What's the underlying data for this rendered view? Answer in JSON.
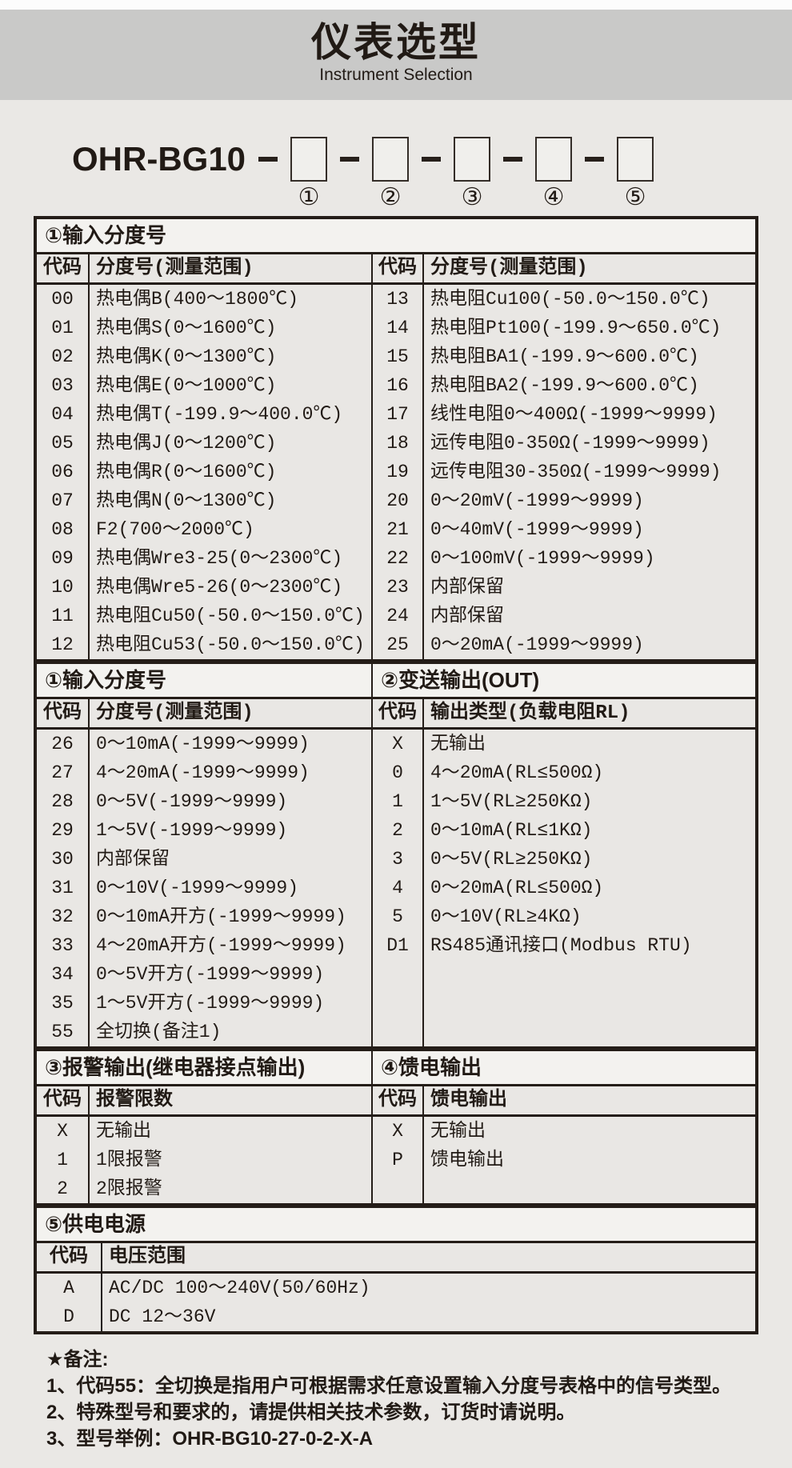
{
  "page": {
    "banner": {
      "title": "仪表选型",
      "subtitle": "Instrument Selection"
    },
    "model": {
      "prefix": "OHR-BG10",
      "slots": [
        "①",
        "②",
        "③",
        "④",
        "⑤"
      ]
    },
    "colors": {
      "page_bg": "#eae8e5",
      "banner_bg": "#c9c9c8",
      "section_header_bg": "#f3f2ef",
      "table_border": "#241d18",
      "text": "#211a15",
      "box_fill": "#f0efec"
    },
    "sections": [
      {
        "titles": [
          "①输入分度号"
        ],
        "col_headers": [
          "代码",
          "分度号(测量范围)",
          "代码",
          "分度号(测量范围)"
        ],
        "halves": [
          [
            [
              "00",
              "热电偶B(400～1800℃)"
            ],
            [
              "01",
              "热电偶S(0～1600℃)"
            ],
            [
              "02",
              "热电偶K(0～1300℃)"
            ],
            [
              "03",
              "热电偶E(0～1000℃)"
            ],
            [
              "04",
              "热电偶T(-199.9～400.0℃)"
            ],
            [
              "05",
              "热电偶J(0～1200℃)"
            ],
            [
              "06",
              "热电偶R(0～1600℃)"
            ],
            [
              "07",
              "热电偶N(0～1300℃)"
            ],
            [
              "08",
              "F2(700～2000℃)"
            ],
            [
              "09",
              "热电偶Wre3-25(0～2300℃)"
            ],
            [
              "10",
              "热电偶Wre5-26(0～2300℃)"
            ],
            [
              "11",
              "热电阻Cu50(-50.0～150.0℃)"
            ],
            [
              "12",
              "热电阻Cu53(-50.0～150.0℃)"
            ]
          ],
          [
            [
              "13",
              "热电阻Cu100(-50.0～150.0℃)"
            ],
            [
              "14",
              "热电阻Pt100(-199.9～650.0℃)"
            ],
            [
              "15",
              "热电阻BA1(-199.9～600.0℃)"
            ],
            [
              "16",
              "热电阻BA2(-199.9～600.0℃)"
            ],
            [
              "17",
              "线性电阻0～400Ω(-1999～9999)"
            ],
            [
              "18",
              "远传电阻0-350Ω(-1999～9999)"
            ],
            [
              "19",
              "远传电阻30-350Ω(-1999～9999)"
            ],
            [
              "20",
              "0～20mV(-1999～9999)"
            ],
            [
              "21",
              "0～40mV(-1999～9999)"
            ],
            [
              "22",
              "0～100mV(-1999～9999)"
            ],
            [
              "23",
              "内部保留"
            ],
            [
              "24",
              "内部保留"
            ],
            [
              "25",
              "0～20mA(-1999～9999)"
            ]
          ]
        ]
      },
      {
        "titles": [
          "①输入分度号",
          "②变送输出(OUT)"
        ],
        "col_headers": [
          "代码",
          "分度号(测量范围)",
          "代码",
          "输出类型(负载电阻RL)"
        ],
        "halves": [
          [
            [
              "26",
              "0～10mA(-1999～9999)"
            ],
            [
              "27",
              "4～20mA(-1999～9999)"
            ],
            [
              "28",
              "0～5V(-1999～9999)"
            ],
            [
              "29",
              "1～5V(-1999～9999)"
            ],
            [
              "30",
              "内部保留"
            ],
            [
              "31",
              "0～10V(-1999～9999)"
            ],
            [
              "32",
              "0～10mA开方(-1999～9999)"
            ],
            [
              "33",
              "4～20mA开方(-1999～9999)"
            ],
            [
              "34",
              "0～5V开方(-1999～9999)"
            ],
            [
              "35",
              "1～5V开方(-1999～9999)"
            ],
            [
              "55",
              "全切换(备注1)"
            ]
          ],
          [
            [
              "X",
              "无输出"
            ],
            [
              "0",
              "4～20mA(RL≤500Ω)"
            ],
            [
              "1",
              "1～5V(RL≥250KΩ)"
            ],
            [
              "2",
              "0～10mA(RL≤1KΩ)"
            ],
            [
              "3",
              "0～5V(RL≥250KΩ)"
            ],
            [
              "4",
              "0～20mA(RL≤500Ω)"
            ],
            [
              "5",
              "0～10V(RL≥4KΩ)"
            ],
            [
              "D1",
              "RS485通讯接口(Modbus RTU)"
            ]
          ]
        ]
      },
      {
        "titles": [
          "③报警输出(继电器接点输出)",
          "④馈电输出"
        ],
        "col_headers": [
          "代码",
          "报警限数",
          "代码",
          "馈电输出"
        ],
        "halves": [
          [
            [
              "X",
              "无输出"
            ],
            [
              "1",
              "1限报警"
            ],
            [
              "2",
              "2限报警"
            ]
          ],
          [
            [
              "X",
              "无输出"
            ],
            [
              "P",
              "馈电输出"
            ]
          ]
        ]
      },
      {
        "titles": [
          "⑤供电电源"
        ],
        "col_headers": [
          "代码",
          "电压范围"
        ],
        "halves": [
          [
            [
              "A",
              "AC/DC 100～240V(50/60Hz)"
            ],
            [
              "D",
              "DC 12～36V"
            ]
          ]
        ]
      }
    ],
    "notes": {
      "title": "★备注:",
      "items": [
        "1、代码55：全切换是指用户可根据需求任意设置输入分度号表格中的信号类型。",
        "2、特殊型号和要求的，请提供相关技术参数，订货时请说明。",
        "3、型号举例：OHR-BG10-27-0-2-X-A"
      ]
    }
  }
}
